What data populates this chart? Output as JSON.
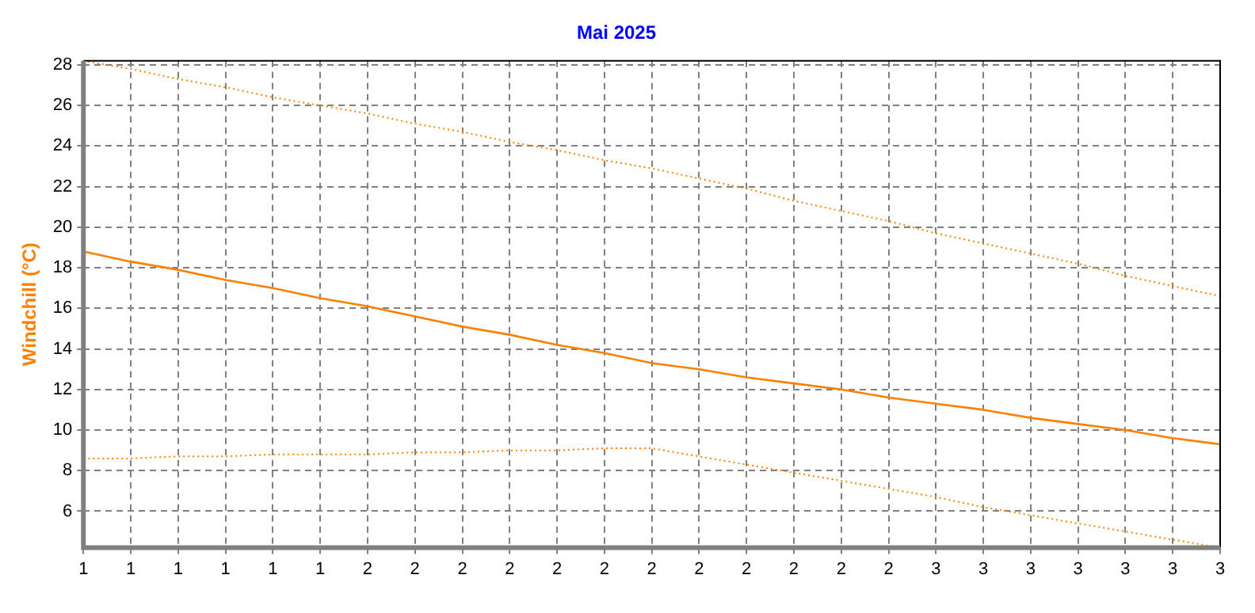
{
  "chart_data": {
    "type": "line",
    "title": "Mai 2025",
    "ylabel": "Windchill (°C)",
    "categories": [
      "1",
      "1",
      "1",
      "1",
      "1",
      "1",
      "2",
      "2",
      "2",
      "2",
      "2",
      "2",
      "2",
      "2",
      "2",
      "2",
      "2",
      "2",
      "3",
      "3",
      "3",
      "3",
      "3",
      "3",
      "3"
    ],
    "series": [
      {
        "color": "#ff8000",
        "line_style": "dotted",
        "values": [
          28.2,
          27.8,
          27.3,
          26.9,
          26.4,
          26.0,
          25.6,
          25.1,
          24.7,
          24.2,
          23.8,
          23.3,
          22.9,
          22.4,
          21.9,
          21.3,
          20.8,
          20.3,
          19.7,
          19.2,
          18.7,
          18.2,
          17.6,
          17.1,
          16.6
        ]
      },
      {
        "color": "#ff8000",
        "line_style": "solid",
        "values": [
          18.8,
          18.3,
          17.9,
          17.4,
          17.0,
          16.5,
          16.1,
          15.6,
          15.1,
          14.7,
          14.2,
          13.8,
          13.3,
          13.0,
          12.6,
          12.3,
          12.0,
          11.6,
          11.3,
          11.0,
          10.6,
          10.3,
          10.0,
          9.6,
          9.3
        ]
      },
      {
        "color": "#ff8000",
        "line_style": "dotted",
        "values": [
          8.6,
          8.6,
          8.7,
          8.7,
          8.8,
          8.8,
          8.8,
          8.9,
          8.9,
          9.0,
          9.0,
          9.1,
          9.1,
          8.7,
          8.3,
          7.9,
          7.5,
          7.1,
          6.7,
          6.2,
          5.8,
          5.4,
          5.0,
          4.6,
          4.2
        ]
      }
    ],
    "ylim": [
      4.2,
      28.2
    ],
    "yticks": [
      6,
      8,
      10,
      12,
      14,
      16,
      18,
      20,
      22,
      24,
      26,
      28
    ],
    "grid": true,
    "legend": false,
    "marker": "none"
  }
}
